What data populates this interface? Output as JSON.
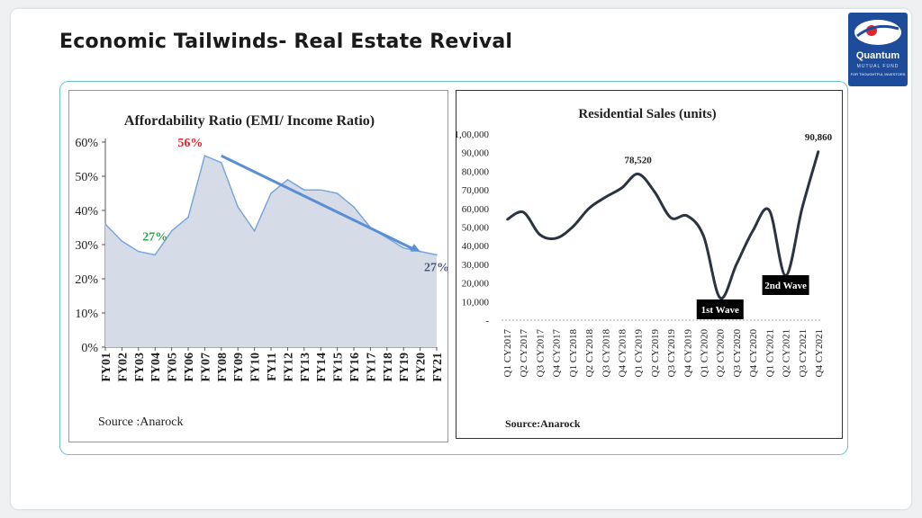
{
  "slide": {
    "title": "Economic Tailwinds- Real Estate Revival"
  },
  "logo": {
    "brand": "Quantum",
    "line1": "MUTUAL FUND",
    "line2": "FOR THOUGHTFUL INVESTORS",
    "colors": {
      "background": "#1e4c9a",
      "accent": "#e0262b"
    }
  },
  "chart_data": [
    {
      "type": "area",
      "title": "Affordability  Ratio (EMI/ Income Ratio)",
      "source": "Source :Anarock",
      "categories": [
        "FY01",
        "FY02",
        "FY03",
        "FY04",
        "FY05",
        "FY06",
        "FY07",
        "FY08",
        "FY09",
        "FY10",
        "FY11",
        "FY12",
        "FY13",
        "FY14",
        "FY15",
        "FY16",
        "FY17",
        "FY18",
        "FY19",
        "FY20",
        "FY21"
      ],
      "values": [
        36,
        31,
        28,
        27,
        34,
        38,
        56,
        54,
        41,
        34,
        45,
        49,
        46,
        46,
        45,
        41,
        35,
        32,
        29,
        28,
        27
      ],
      "y_ticks": [
        "0%",
        "10%",
        "20%",
        "30%",
        "40%",
        "50%",
        "60%"
      ],
      "ylim": [
        0,
        60
      ],
      "annotations": [
        {
          "text": "56%",
          "category": "FY07",
          "value": 56,
          "color": "#e0262b"
        },
        {
          "text": "27%",
          "category": "FY04",
          "value": 27,
          "color": "#2aa84a"
        },
        {
          "text": "27%",
          "category": "FY21",
          "value": 27,
          "color": "#4a5a7a"
        }
      ],
      "trend_arrow": {
        "from": {
          "category": "FY08",
          "value": 56
        },
        "to": {
          "category": "FY20",
          "value": 28
        },
        "color": "#5b8fd4"
      },
      "fill_color": "#d5dce8",
      "line_color": "#7aa7d8"
    },
    {
      "type": "line",
      "title": "Residential Sales (units)",
      "source": "Source:Anarock",
      "categories": [
        "Q1 CY2017",
        "Q2 CY2017",
        "Q3 CY2017",
        "Q4 CY2017",
        "Q1 CY2018",
        "Q2 CY2018",
        "Q3 CY2018",
        "Q4 CY2018",
        "Q1 CY2019",
        "Q2 CY2019",
        "Q3 CY2019",
        "Q4 CY2019",
        "Q1 CY2020",
        "Q2 CY2020",
        "Q3 CY2020",
        "Q4 CY2020",
        "Q1 CY2021",
        "Q2 CY2021",
        "Q3 CY2021",
        "Q4 CY2021"
      ],
      "values": [
        54000,
        58000,
        46000,
        44000,
        50000,
        60000,
        66000,
        71000,
        78520,
        69000,
        55000,
        56000,
        45000,
        12000,
        30000,
        48000,
        59000,
        24000,
        60000,
        90860
      ],
      "y_ticks": [
        "-",
        "10,000",
        "20,000",
        "30,000",
        "40,000",
        "50,000",
        "60,000",
        "70,000",
        "80,000",
        "90,000",
        "1,00,000"
      ],
      "ylim": [
        0,
        100000
      ],
      "data_labels": [
        {
          "text": "78,520",
          "category": "Q1 CY2019",
          "value": 78520
        },
        {
          "text": "90,860",
          "category": "Q4 CY2021",
          "value": 90860
        }
      ],
      "callouts": [
        {
          "text": "1st Wave",
          "category": "Q2 CY2020"
        },
        {
          "text": "2nd Wave",
          "category": "Q2 CY2021"
        }
      ],
      "line_color": "#2b3340"
    }
  ]
}
